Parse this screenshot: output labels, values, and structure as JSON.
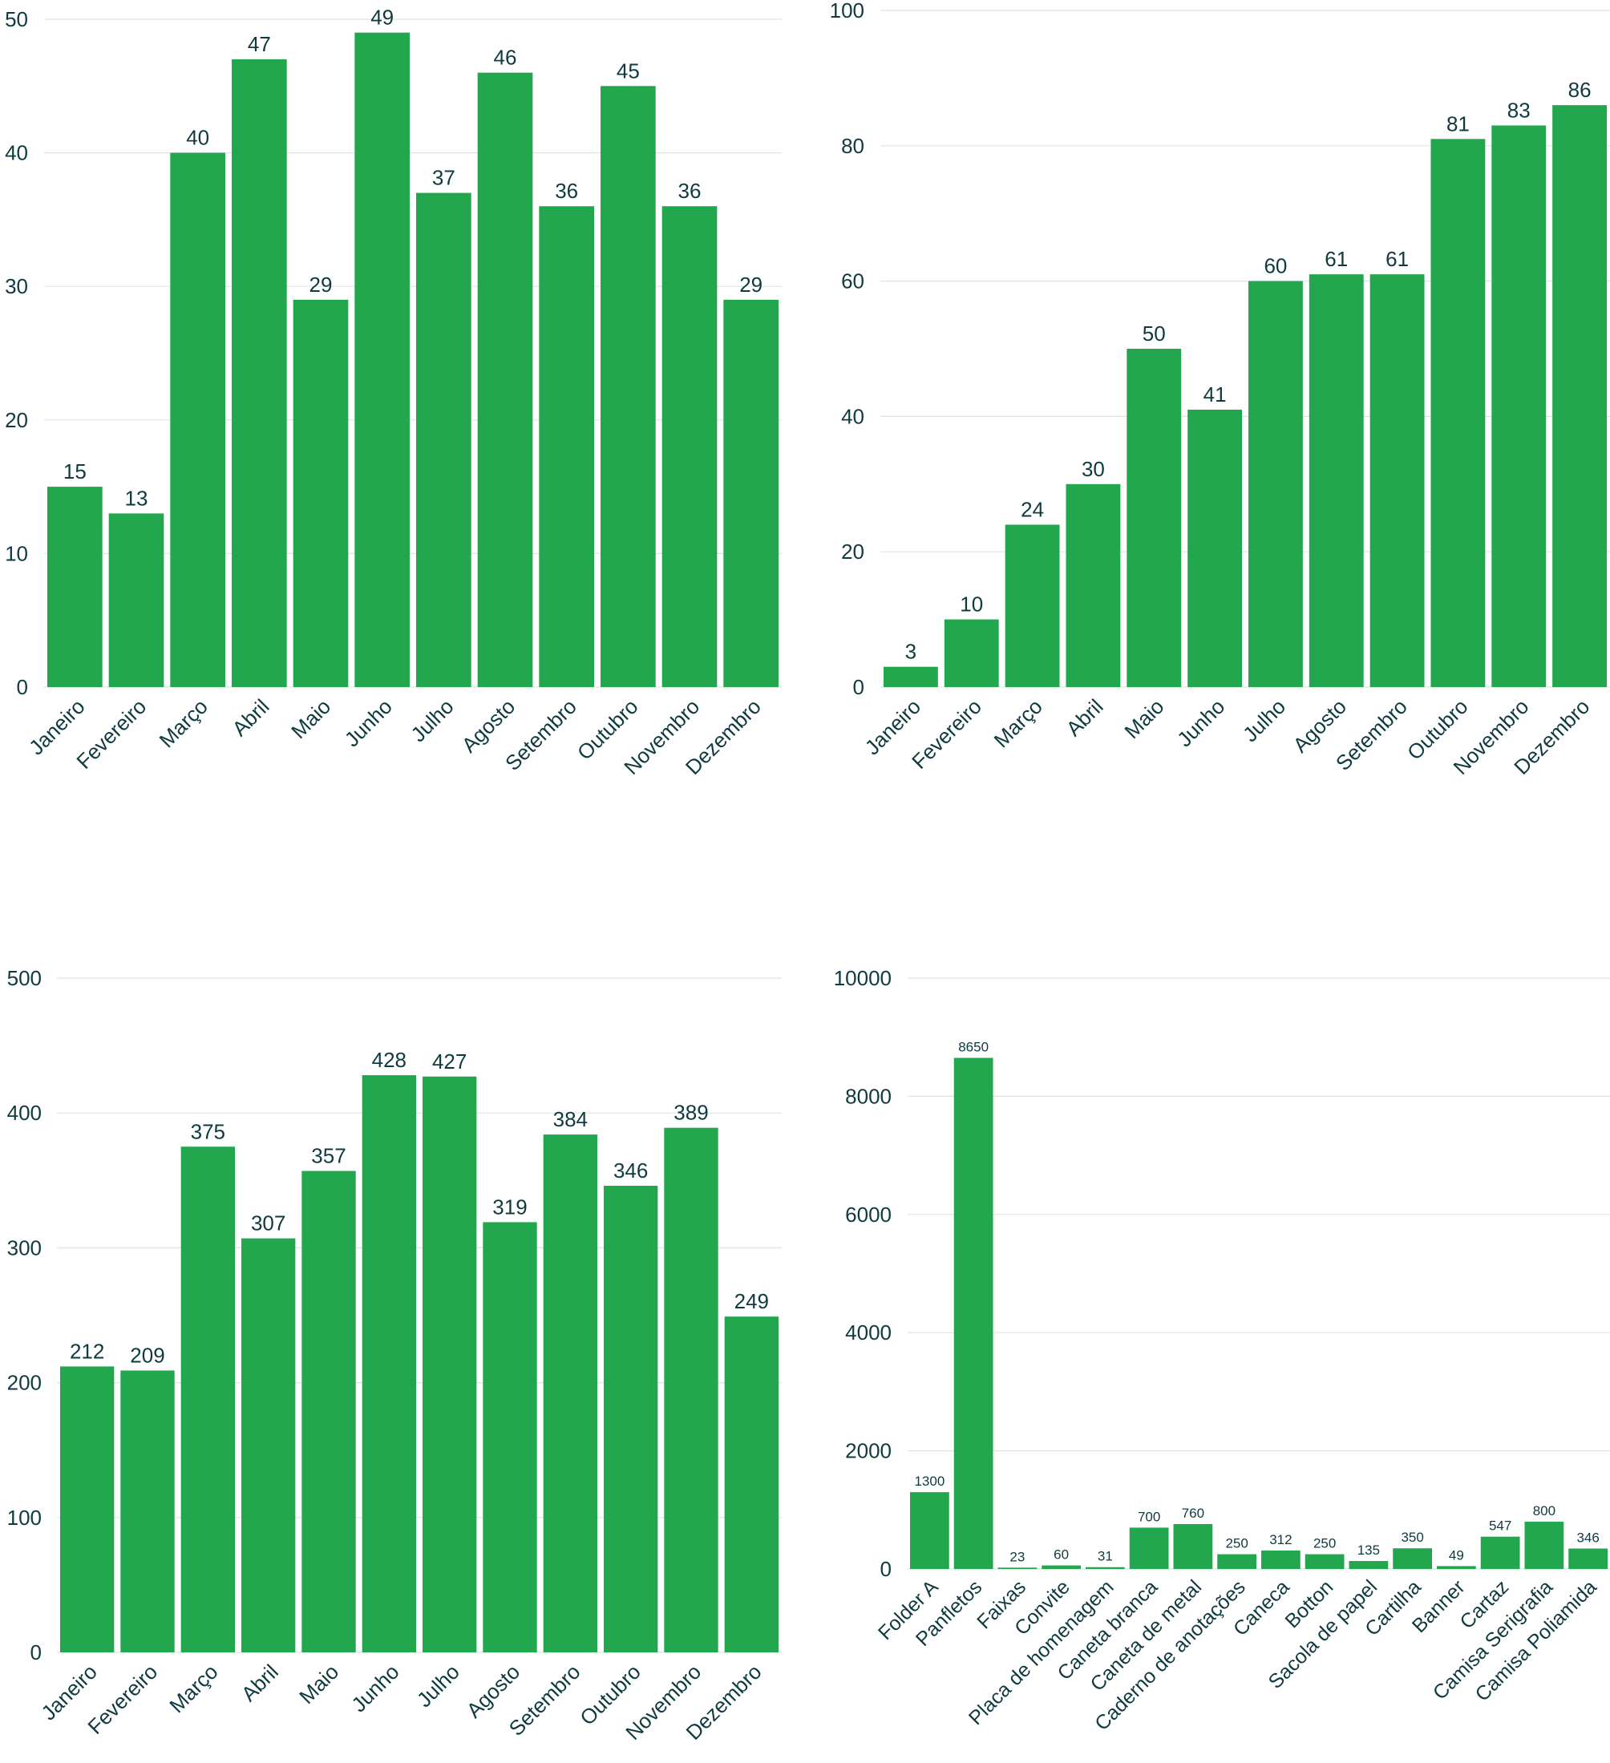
{
  "colors": {
    "bar": "#22a64e",
    "text": "#0f3b40",
    "grid": "#dbe6e4"
  },
  "chart_data": [
    {
      "type": "bar",
      "categories": [
        "Janeiro",
        "Fevereiro",
        "Março",
        "Abril",
        "Maio",
        "Junho",
        "Julho",
        "Agosto",
        "Setembro",
        "Outubro",
        "Novembro",
        "Dezembro"
      ],
      "values": [
        15,
        13,
        40,
        47,
        29,
        49,
        37,
        46,
        36,
        45,
        36,
        29
      ],
      "ylim": [
        0,
        50
      ],
      "yticks": [
        0,
        10,
        20,
        30,
        40,
        50
      ],
      "grid": true
    },
    {
      "type": "bar",
      "categories": [
        "Janeiro",
        "Fevereiro",
        "Março",
        "Abril",
        "Maio",
        "Junho",
        "Julho",
        "Agosto",
        "Setembro",
        "Outubro",
        "Novembro",
        "Dezembro"
      ],
      "values": [
        3,
        10,
        24,
        30,
        50,
        41,
        60,
        61,
        61,
        81,
        83,
        86
      ],
      "ylim": [
        0,
        100
      ],
      "yticks": [
        0,
        20,
        40,
        60,
        80,
        100
      ],
      "grid": true
    },
    {
      "type": "bar",
      "categories": [
        "Janeiro",
        "Fevereiro",
        "Março",
        "Abril",
        "Maio",
        "Junho",
        "Julho",
        "Agosto",
        "Setembro",
        "Outubro",
        "Novembro",
        "Dezembro"
      ],
      "values": [
        212,
        209,
        375,
        307,
        357,
        428,
        427,
        319,
        384,
        346,
        389,
        249
      ],
      "ylim": [
        0,
        500
      ],
      "yticks": [
        0,
        100,
        200,
        300,
        400,
        500
      ],
      "grid": true
    },
    {
      "type": "bar",
      "categories": [
        "Folder A",
        "Panfletos",
        "Faixas",
        "Convite",
        "Placa de homenagem",
        "Caneta branca",
        "Caneta de metal",
        "Caderno de anotações",
        "Caneca",
        "Botton",
        "Sacola de papel",
        "Cartilha",
        "Banner",
        "Cartaz",
        "Camisa Serigrafia",
        "Camisa Poliamida"
      ],
      "values": [
        1300,
        8650,
        23,
        60,
        31,
        700,
        760,
        250,
        312,
        250,
        135,
        350,
        49,
        547,
        800,
        346
      ],
      "ylim": [
        0,
        10000
      ],
      "yticks": [
        0,
        2000,
        4000,
        6000,
        8000,
        10000
      ],
      "grid": true
    }
  ]
}
